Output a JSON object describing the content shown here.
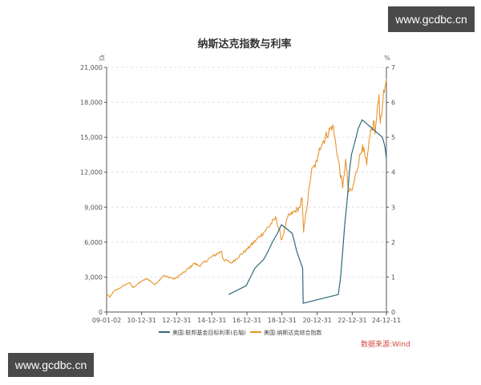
{
  "watermark_top": "www.gcdbc.cn",
  "watermark_bottom": "www.gcdbc.cn",
  "source_note": "数据来源:Wind",
  "chart_data": {
    "type": "line",
    "title": "纳斯达克指数与利率",
    "left_unit": "点",
    "right_unit": "%",
    "xlim": [
      "2009-01-02",
      "2024-12-11"
    ],
    "ylim_left": [
      0,
      21000
    ],
    "ylim_right": [
      0,
      7
    ],
    "x_tick_labels": [
      "09-01-02",
      "10-12-31",
      "12-12-31",
      "14-12-31",
      "16-12-31",
      "18-12-31",
      "20-12-31",
      "22-12-31",
      "24-12-11"
    ],
    "x_tick_dates": [
      "2009-01-02",
      "2010-12-31",
      "2012-12-31",
      "2014-12-31",
      "2016-12-31",
      "2018-12-31",
      "2020-12-31",
      "2022-12-31",
      "2024-12-11"
    ],
    "y_left_ticks": [
      "0",
      "3,000",
      "6,000",
      "9,000",
      "12,000",
      "15,000",
      "18,000",
      "21,000"
    ],
    "y_left_values": [
      0,
      3000,
      6000,
      9000,
      12000,
      15000,
      18000,
      21000
    ],
    "y_right_ticks": [
      "0",
      "1",
      "2",
      "3",
      "4",
      "5",
      "6",
      "7"
    ],
    "y_right_values": [
      0,
      1,
      2,
      3,
      4,
      5,
      6,
      7
    ],
    "grid": "horizontal-dashed",
    "legend_position": "bottom",
    "series": [
      {
        "name": "美国:联邦基金目标利率(右轴)",
        "color": "#2e6b7a",
        "axis": "right",
        "x": [
          "2015-12-16",
          "2016-12-14",
          "2017-03-15",
          "2017-06-14",
          "2017-12-13",
          "2018-03-21",
          "2018-06-13",
          "2018-09-26",
          "2018-12-19",
          "2019-07-31",
          "2019-09-18",
          "2019-10-30",
          "2020-03-03",
          "2020-03-15",
          "2022-03-16",
          "2022-05-04",
          "2022-06-15",
          "2022-07-27",
          "2022-09-21",
          "2022-11-02",
          "2022-12-14",
          "2023-02-01",
          "2023-03-22",
          "2023-05-03",
          "2023-07-26",
          "2024-09-18",
          "2024-11-07",
          "2024-12-11"
        ],
        "values": [
          0.5,
          0.75,
          1.0,
          1.25,
          1.5,
          1.75,
          2.0,
          2.25,
          2.5,
          2.25,
          2.0,
          1.75,
          1.25,
          0.25,
          0.5,
          1.0,
          1.75,
          2.5,
          3.25,
          4.0,
          4.5,
          4.75,
          5.0,
          5.25,
          5.5,
          5.0,
          4.75,
          4.4
        ]
      },
      {
        "name": "美国:纳斯达克综合指数",
        "color": "#e8952e",
        "axis": "left",
        "x": [
          "2009-01-02",
          "2009-03-09",
          "2009-06-01",
          "2009-10-01",
          "2010-01-04",
          "2010-04-23",
          "2010-07-02",
          "2010-12-31",
          "2011-04-29",
          "2011-10-03",
          "2012-03-26",
          "2012-11-15",
          "2013-06-01",
          "2013-12-31",
          "2014-04-14",
          "2014-12-31",
          "2015-07-20",
          "2015-08-24",
          "2016-02-11",
          "2016-12-31",
          "2017-06-30",
          "2017-12-31",
          "2018-08-29",
          "2018-12-24",
          "2019-04-30",
          "2019-12-31",
          "2020-02-19",
          "2020-03-23",
          "2020-09-02",
          "2020-12-31",
          "2021-02-12",
          "2021-11-19",
          "2022-06-16",
          "2022-08-16",
          "2022-10-13",
          "2022-12-31",
          "2023-07-31",
          "2023-10-27",
          "2023-12-31",
          "2024-03-31",
          "2024-04-19",
          "2024-07-10",
          "2024-08-05",
          "2024-09-30",
          "2024-11-12",
          "2024-12-11"
        ],
        "values": [
          1580,
          1270,
          1780,
          2050,
          2300,
          2530,
          2090,
          2650,
          2870,
          2340,
          3120,
          2840,
          3400,
          4180,
          3950,
          4740,
          5220,
          4530,
          4210,
          5380,
          6140,
          6900,
          8090,
          6190,
          8160,
          8970,
          9820,
          6860,
          12060,
          12890,
          14090,
          16060,
          10650,
          13130,
          10320,
          10470,
          14350,
          12600,
          15010,
          16380,
          15280,
          18650,
          16200,
          18190,
          19300,
          20000
        ]
      }
    ]
  }
}
